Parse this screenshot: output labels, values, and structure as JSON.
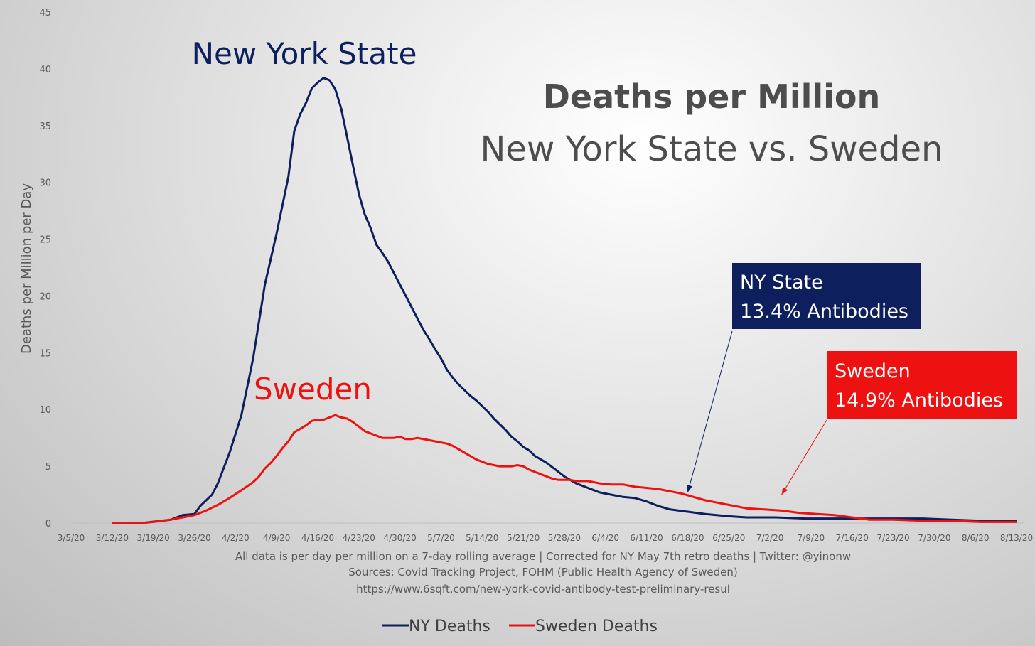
{
  "chart_data": {
    "type": "line",
    "title": "Deaths per Million",
    "subtitle": "New York State  vs. Sweden",
    "ylabel": "Deaths per Million per Day",
    "xlabel": "",
    "ylim": [
      0,
      45
    ],
    "yticks": [
      0,
      5,
      10,
      15,
      20,
      25,
      30,
      35,
      40,
      45
    ],
    "day_range": [
      0,
      161
    ],
    "x_tick_labels": [
      "3/5/20",
      "3/12/20",
      "3/19/20",
      "3/26/20",
      "4/2/20",
      "4/9/20",
      "4/16/20",
      "4/23/20",
      "4/30/20",
      "5/7/20",
      "5/14/20",
      "5/21/20",
      "5/28/20",
      "6/4/20",
      "6/11/20",
      "6/18/20",
      "6/25/20",
      "7/2/20",
      "7/9/20",
      "7/16/20",
      "7/23/20",
      "7/30/20",
      "8/6/20",
      "8/13/20"
    ],
    "series": [
      {
        "name": "NY Deaths",
        "color": "#0d1f5c",
        "points": [
          [
            7,
            0
          ],
          [
            12,
            0
          ],
          [
            17,
            0.3
          ],
          [
            19,
            0.7
          ],
          [
            21,
            0.8
          ],
          [
            22,
            1.5
          ],
          [
            24,
            2.5
          ],
          [
            25,
            3.5
          ],
          [
            27,
            6.2
          ],
          [
            29,
            9.5
          ],
          [
            31,
            14.5
          ],
          [
            33,
            21
          ],
          [
            35,
            25.5
          ],
          [
            37,
            30.5
          ],
          [
            38,
            34.5
          ],
          [
            39,
            36
          ],
          [
            40,
            37
          ],
          [
            41,
            38.3
          ],
          [
            42,
            38.8
          ],
          [
            43,
            39.2
          ],
          [
            44,
            39
          ],
          [
            45,
            38.2
          ],
          [
            46,
            36.5
          ],
          [
            47,
            34
          ],
          [
            48,
            31.5
          ],
          [
            49,
            29
          ],
          [
            50,
            27.2
          ],
          [
            51,
            26
          ],
          [
            52,
            24.5
          ],
          [
            53,
            23.8
          ],
          [
            54,
            23
          ],
          [
            55,
            22
          ],
          [
            56,
            21
          ],
          [
            57,
            20
          ],
          [
            58,
            19
          ],
          [
            59,
            18
          ],
          [
            60,
            17
          ],
          [
            61,
            16.2
          ],
          [
            62,
            15.3
          ],
          [
            63,
            14.5
          ],
          [
            64,
            13.5
          ],
          [
            65,
            12.8
          ],
          [
            66,
            12.2
          ],
          [
            67,
            11.7
          ],
          [
            68,
            11.2
          ],
          [
            69,
            10.8
          ],
          [
            70,
            10.3
          ],
          [
            71,
            9.8
          ],
          [
            72,
            9.2
          ],
          [
            73,
            8.7
          ],
          [
            74,
            8.2
          ],
          [
            75,
            7.6
          ],
          [
            76,
            7.2
          ],
          [
            77,
            6.7
          ],
          [
            78,
            6.4
          ],
          [
            79,
            5.9
          ],
          [
            80,
            5.6
          ],
          [
            81,
            5.3
          ],
          [
            82,
            4.9
          ],
          [
            83,
            4.5
          ],
          [
            84,
            4.1
          ],
          [
            85,
            3.8
          ],
          [
            86,
            3.5
          ],
          [
            87,
            3.3
          ],
          [
            88,
            3.1
          ],
          [
            89,
            2.9
          ],
          [
            90,
            2.7
          ],
          [
            92,
            2.5
          ],
          [
            94,
            2.3
          ],
          [
            96,
            2.2
          ],
          [
            98,
            1.9
          ],
          [
            100,
            1.5
          ],
          [
            102,
            1.2
          ],
          [
            105,
            1
          ],
          [
            108,
            0.8
          ],
          [
            112,
            0.6
          ],
          [
            115,
            0.5
          ],
          [
            120,
            0.5
          ],
          [
            125,
            0.4
          ],
          [
            130,
            0.4
          ],
          [
            135,
            0.4
          ],
          [
            140,
            0.4
          ],
          [
            145,
            0.4
          ],
          [
            150,
            0.3
          ],
          [
            155,
            0.2
          ],
          [
            161,
            0.2
          ]
        ]
      },
      {
        "name": "Sweden Deaths",
        "color": "#ee1111",
        "points": [
          [
            7,
            0
          ],
          [
            12,
            0
          ],
          [
            14,
            0.1
          ],
          [
            17,
            0.3
          ],
          [
            19,
            0.5
          ],
          [
            21,
            0.7
          ],
          [
            23,
            1.1
          ],
          [
            25,
            1.6
          ],
          [
            27,
            2.2
          ],
          [
            29,
            2.9
          ],
          [
            31,
            3.6
          ],
          [
            32,
            4.1
          ],
          [
            33,
            4.8
          ],
          [
            34,
            5.3
          ],
          [
            35,
            5.9
          ],
          [
            36,
            6.6
          ],
          [
            37,
            7.2
          ],
          [
            38,
            8
          ],
          [
            39,
            8.3
          ],
          [
            40,
            8.6
          ],
          [
            41,
            9
          ],
          [
            42,
            9.1
          ],
          [
            43,
            9.1
          ],
          [
            44,
            9.3
          ],
          [
            45,
            9.5
          ],
          [
            46,
            9.3
          ],
          [
            47,
            9.2
          ],
          [
            48,
            8.9
          ],
          [
            49,
            8.5
          ],
          [
            50,
            8.1
          ],
          [
            51,
            7.9
          ],
          [
            52,
            7.7
          ],
          [
            53,
            7.5
          ],
          [
            54,
            7.5
          ],
          [
            55,
            7.5
          ],
          [
            56,
            7.6
          ],
          [
            57,
            7.4
          ],
          [
            58,
            7.4
          ],
          [
            59,
            7.5
          ],
          [
            60,
            7.4
          ],
          [
            61,
            7.3
          ],
          [
            62,
            7.2
          ],
          [
            63,
            7.1
          ],
          [
            64,
            7
          ],
          [
            65,
            6.8
          ],
          [
            66,
            6.5
          ],
          [
            67,
            6.2
          ],
          [
            68,
            5.9
          ],
          [
            69,
            5.6
          ],
          [
            70,
            5.4
          ],
          [
            71,
            5.2
          ],
          [
            72,
            5.1
          ],
          [
            73,
            5
          ],
          [
            74,
            5
          ],
          [
            75,
            5
          ],
          [
            76,
            5.1
          ],
          [
            77,
            5
          ],
          [
            78,
            4.7
          ],
          [
            79,
            4.5
          ],
          [
            80,
            4.3
          ],
          [
            81,
            4.1
          ],
          [
            82,
            3.9
          ],
          [
            83,
            3.8
          ],
          [
            84,
            3.8
          ],
          [
            85,
            3.8
          ],
          [
            86,
            3.7
          ],
          [
            88,
            3.7
          ],
          [
            90,
            3.5
          ],
          [
            92,
            3.4
          ],
          [
            94,
            3.4
          ],
          [
            96,
            3.2
          ],
          [
            98,
            3.1
          ],
          [
            100,
            3
          ],
          [
            102,
            2.8
          ],
          [
            104,
            2.6
          ],
          [
            106,
            2.3
          ],
          [
            108,
            2
          ],
          [
            110,
            1.8
          ],
          [
            112,
            1.6
          ],
          [
            115,
            1.3
          ],
          [
            118,
            1.2
          ],
          [
            121,
            1.1
          ],
          [
            124,
            0.9
          ],
          [
            127,
            0.8
          ],
          [
            130,
            0.7
          ],
          [
            133,
            0.5
          ],
          [
            136,
            0.3
          ],
          [
            140,
            0.3
          ],
          [
            145,
            0.2
          ],
          [
            150,
            0.2
          ],
          [
            155,
            0.1
          ],
          [
            161,
            0.1
          ]
        ]
      }
    ],
    "annotations": {
      "ny_label": "New York State",
      "sweden_label": "Sweden",
      "ny_box_line1": "NY State",
      "ny_box_line2": "13.4% Antibodies",
      "sweden_box_line1": "Sweden",
      "sweden_box_line2": "14.9% Antibodies",
      "ny_arrow_target": [
        105,
        2.7
      ],
      "sweden_arrow_target": [
        121,
        2.5
      ]
    },
    "footnotes": [
      "All data is per day per million on a 7-day rolling average | Corrected for NY May 7th retro deaths | Twitter: @yinonw",
      "Sources: Covid Tracking Project, FOHM (Public Health Agency of Sweden)",
      "https://www.6sqft.com/new-york-covid-antibody-test-preliminary-resul"
    ],
    "legend": {
      "position": "bottom-center",
      "items": [
        "NY Deaths",
        "Sweden Deaths"
      ]
    },
    "colors": {
      "ny_box": "#0d1f5c",
      "sweden_box": "#ee1111",
      "text": "#595959"
    }
  }
}
